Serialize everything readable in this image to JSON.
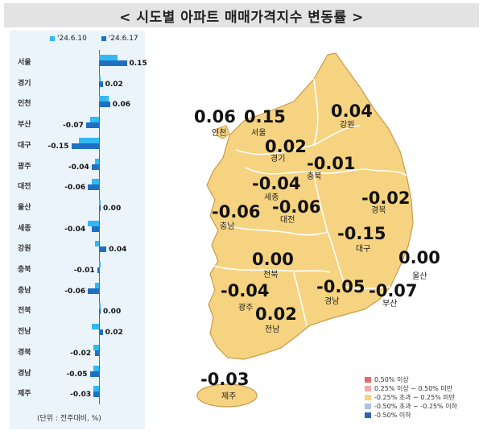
{
  "title": "< 시도별 아파트 매매가격지수 변동률 >",
  "legend": {
    "prev": "'24.6.10",
    "curr": "'24.6.17",
    "prev_color": "#32b9f2",
    "curr_color": "#1f6fc5"
  },
  "unit_note": "(단위 : 전주대비, %)",
  "chart_data": {
    "type": "bar",
    "orientation": "horizontal",
    "categories": [
      "서울",
      "경기",
      "인천",
      "부산",
      "대구",
      "광주",
      "대전",
      "울산",
      "세종",
      "강원",
      "충북",
      "충남",
      "전북",
      "전남",
      "경북",
      "경남",
      "제주"
    ],
    "series": [
      {
        "name": "'24.6.10",
        "values": [
          0.1,
          0.0,
          0.05,
          -0.05,
          -0.11,
          -0.02,
          -0.04,
          0.0,
          -0.06,
          -0.02,
          0.0,
          -0.02,
          0.0,
          -0.04,
          -0.03,
          -0.03,
          -0.03
        ]
      },
      {
        "name": "'24.6.17",
        "values": [
          0.15,
          0.02,
          0.06,
          -0.07,
          -0.15,
          -0.04,
          -0.06,
          0.0,
          -0.04,
          0.04,
          -0.01,
          -0.06,
          0.0,
          0.02,
          -0.02,
          -0.05,
          -0.03
        ]
      }
    ],
    "value_labels": [
      "0.15",
      "0.02",
      "0.06",
      "-0.07",
      "-0.15",
      "-0.04",
      "-0.06",
      "0.00",
      "-0.04",
      "0.04",
      "-0.01",
      "-0.06",
      "0.00",
      "0.02",
      "-0.02",
      "-0.05",
      "-0.03"
    ]
  },
  "map": {
    "regions": [
      {
        "name": "인천",
        "value": "0.06"
      },
      {
        "name": "서울",
        "value": "0.15"
      },
      {
        "name": "강원",
        "value": "0.04"
      },
      {
        "name": "경기",
        "value": "0.02"
      },
      {
        "name": "충북",
        "value": "-0.01"
      },
      {
        "name": "세종",
        "value": "-0.04"
      },
      {
        "name": "충남",
        "value": "-0.06"
      },
      {
        "name": "대전",
        "value": "-0.06"
      },
      {
        "name": "경북",
        "value": "-0.02"
      },
      {
        "name": "대구",
        "value": "-0.15"
      },
      {
        "name": "전북",
        "value": "0.00"
      },
      {
        "name": "울산",
        "value": "0.00"
      },
      {
        "name": "광주",
        "value": "-0.04"
      },
      {
        "name": "경남",
        "value": "-0.05"
      },
      {
        "name": "부산",
        "value": "-0.07"
      },
      {
        "name": "전남",
        "value": "0.02"
      },
      {
        "name": "제주",
        "value": "-0.03"
      }
    ],
    "fill_color": "#f6d380",
    "legend": [
      {
        "label": "0.50% 이상",
        "color": "#e56b6b"
      },
      {
        "label": "0.25% 이상 ~ 0.50% 미만",
        "color": "#f3aaa6"
      },
      {
        "label": "-0.25% 초과 ~ 0.25% 미만",
        "color": "#f6d380"
      },
      {
        "label": "-0.50% 초과 ~ -0.25% 이하",
        "color": "#a9c4e6"
      },
      {
        "label": "-0.50% 이하",
        "color": "#2f63b4"
      }
    ]
  }
}
